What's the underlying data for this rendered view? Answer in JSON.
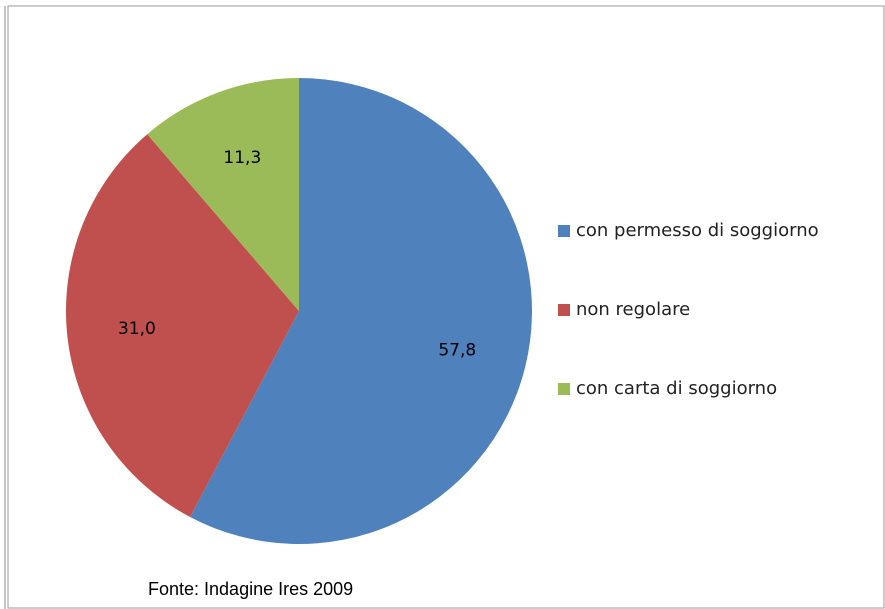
{
  "chart_data": {
    "type": "pie",
    "categories": [
      "con permesso di soggiorno",
      "non regolare",
      "con carta di soggiorno"
    ],
    "values": [
      57.8,
      31.0,
      11.3
    ],
    "value_labels": [
      "57,8",
      "31,0",
      "11,3"
    ],
    "colors": [
      "#4f81bd",
      "#c0504d",
      "#9bbb59"
    ],
    "legend": "right",
    "annotation": "Fonte: Indagine Ires 2009"
  }
}
